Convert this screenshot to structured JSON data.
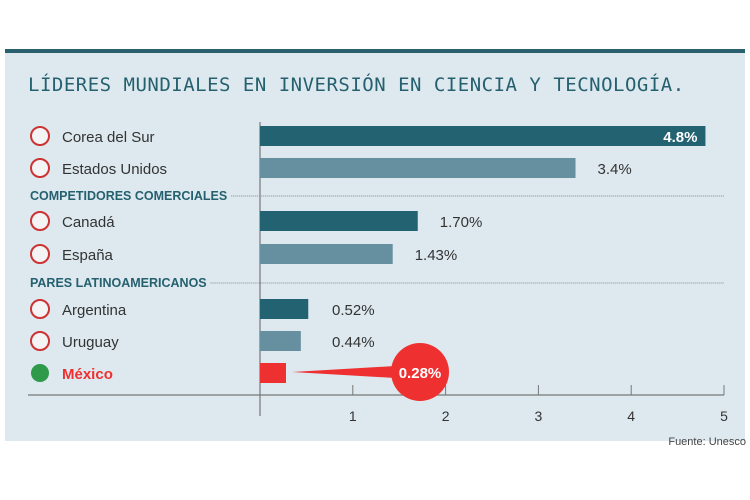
{
  "title": "LÍDERES MUNDIALES EN INVERSIÓN EN CIENCIA Y TECNOLOGÍA.",
  "source": "Fuente: Unesco",
  "chart_data": {
    "type": "bar",
    "orientation": "horizontal",
    "title": "LÍDERES MUNDIALES EN INVERSIÓN EN CIENCIA Y TECNOLOGÍA.",
    "xlim": [
      0,
      5
    ],
    "xticks": [
      "1",
      "2",
      "3",
      "4",
      "5"
    ],
    "colors": {
      "dark": "#236271",
      "light": "#6690a0",
      "highlight": "#ef3030"
    },
    "rows": [
      {
        "type": "bar",
        "category": "Corea del Sur",
        "value": 4.8,
        "label": "4.8%",
        "color": "dark",
        "flag": "south-korea-flag-icon"
      },
      {
        "type": "bar",
        "category": "Estados Unidos",
        "value": 3.4,
        "label": "3.4%",
        "color": "light",
        "flag": "usa-flag-icon"
      },
      {
        "type": "section",
        "label": "COMPETIDORES COMERCIALES"
      },
      {
        "type": "bar",
        "category": "Canadá",
        "value": 1.7,
        "label": "1.70%",
        "color": "dark",
        "flag": "canada-flag-icon"
      },
      {
        "type": "bar",
        "category": "España",
        "value": 1.43,
        "label": "1.43%",
        "color": "light",
        "flag": "spain-flag-icon"
      },
      {
        "type": "section",
        "label": "PARES LATINOAMERICANOS"
      },
      {
        "type": "bar",
        "category": "Argentina",
        "value": 0.52,
        "label": "0.52%",
        "color": "dark",
        "flag": "argentina-flag-icon"
      },
      {
        "type": "bar",
        "category": "Uruguay",
        "value": 0.44,
        "label": "0.44%",
        "color": "light",
        "flag": "uruguay-flag-icon"
      },
      {
        "type": "bar",
        "category": "México",
        "value": 0.28,
        "label": "0.28%",
        "color": "highlight",
        "flag": "mexico-flag-icon",
        "callout": true
      }
    ]
  }
}
